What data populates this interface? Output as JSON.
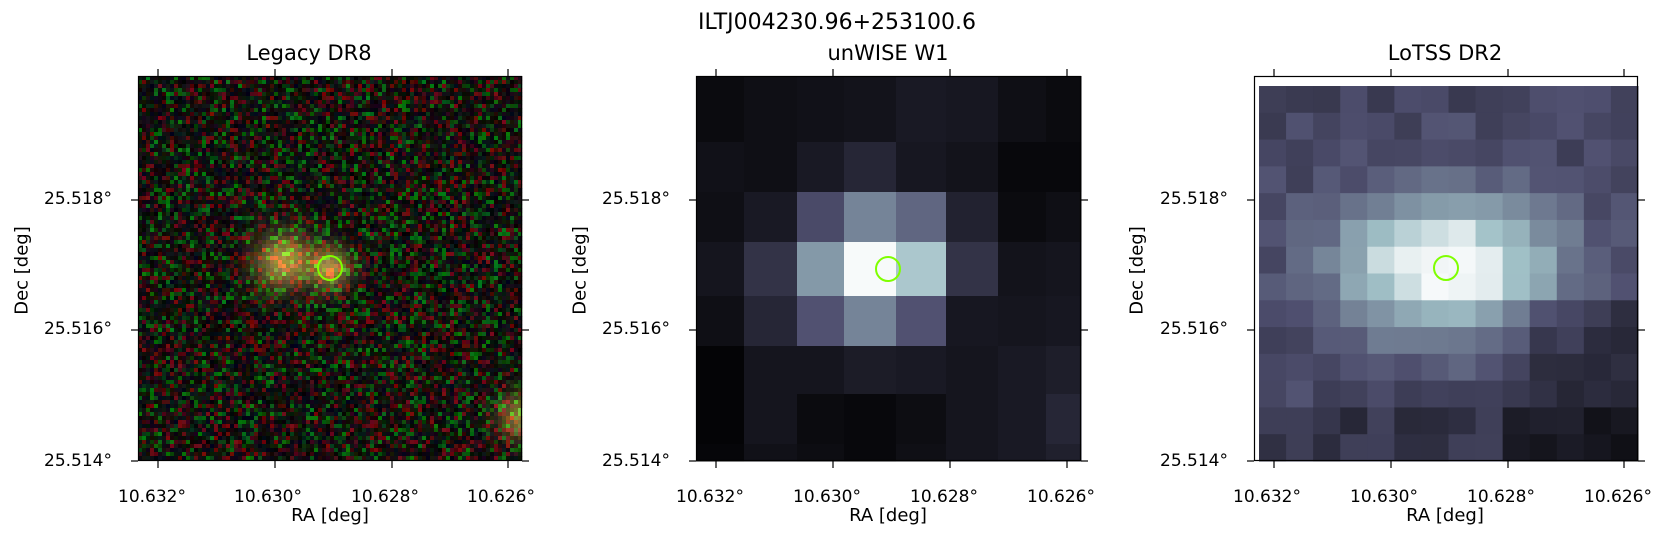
{
  "figure": {
    "suptitle": "ILTJ004230.96+253100.6",
    "marker_color": "#7fff00"
  },
  "panels": [
    {
      "title": "Legacy DR8",
      "xlabel": "RA [deg]",
      "ylabel": "Dec [deg]",
      "xticks": [
        "10.632°",
        "10.630°",
        "10.628°",
        "10.626°"
      ],
      "yticks": [
        "25.518°",
        "25.516°",
        "25.514°"
      ],
      "colormap": "rgb composite",
      "image_kind": "noisy optical cutout with two galaxies",
      "marker_shape": "circle"
    },
    {
      "title": "unWISE W1",
      "xlabel": "RA [deg]",
      "ylabel": "Dec [deg]",
      "xticks": [
        "10.632°",
        "10.630°",
        "10.628°",
        "10.626°"
      ],
      "yticks": [
        "25.518°",
        "25.516°",
        "25.514°"
      ],
      "colormap": "bone",
      "image_kind": "coarse infrared pixel grid",
      "marker_shape": "circle"
    },
    {
      "title": "LoTSS DR2",
      "xlabel": "RA [deg]",
      "ylabel": "Dec [deg]",
      "xticks": [
        "10.632°",
        "10.630°",
        "10.628°",
        "10.626°"
      ],
      "yticks": [
        "25.518°",
        "25.516°",
        "25.514°"
      ],
      "colormap": "bone",
      "image_kind": "radio intensity pixel grid",
      "marker_shape": "circle"
    }
  ]
}
